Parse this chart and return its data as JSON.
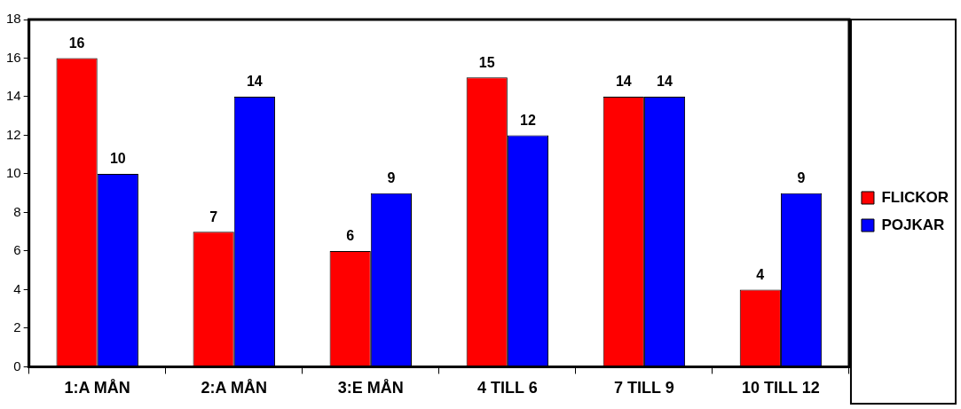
{
  "chart_data": {
    "type": "bar",
    "categories": [
      "1:A MÅN",
      "2:A MÅN",
      "3:E MÅN",
      "4 TILL 6",
      "7 TILL 9",
      "10 TILL 12"
    ],
    "series": [
      {
        "name": "FLICKOR",
        "color": "#ff0000",
        "values": [
          16,
          7,
          6,
          15,
          14,
          4
        ]
      },
      {
        "name": "POJKAR",
        "color": "#0000ff",
        "values": [
          10,
          14,
          9,
          12,
          14,
          9
        ]
      }
    ],
    "ylim": [
      0,
      18
    ],
    "yticks": [
      0,
      2,
      4,
      6,
      8,
      10,
      12,
      14,
      16,
      18
    ],
    "grid": false,
    "legend": "right",
    "data_labels": true
  }
}
